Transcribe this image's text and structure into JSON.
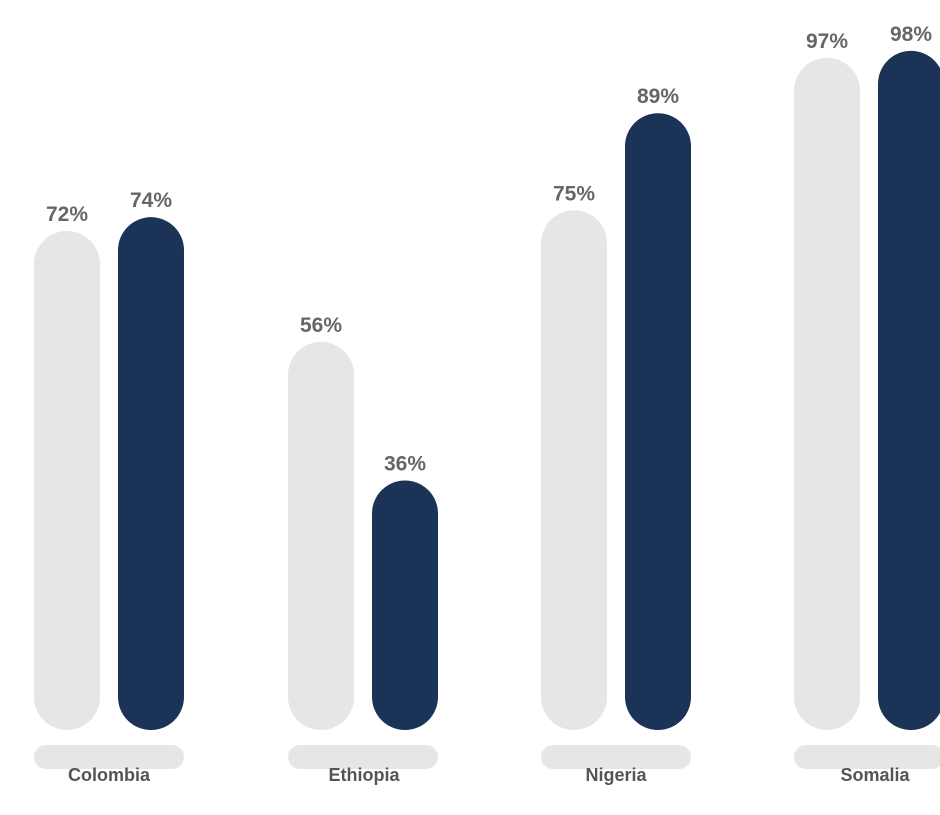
{
  "chart_data": {
    "type": "bar",
    "categories": [
      "Colombia",
      "Ethiopia",
      "Nigeria",
      "Somalia"
    ],
    "series": [
      {
        "values": [
          72,
          56,
          75,
          97
        ],
        "labels": [
          "72%",
          "56%",
          "75%",
          "97%"
        ]
      },
      {
        "values": [
          74,
          36,
          89,
          98
        ],
        "labels": [
          "74%",
          "36%",
          "89%",
          "98%"
        ]
      }
    ],
    "ylim": [
      0,
      100
    ],
    "grid": false,
    "legend": "none"
  },
  "colors": {
    "series_light": "#e6e6e6",
    "series_dark": "#1b3356",
    "category_track": "#e6e6e6",
    "value_text": "#666666",
    "category_text": "#555555"
  }
}
